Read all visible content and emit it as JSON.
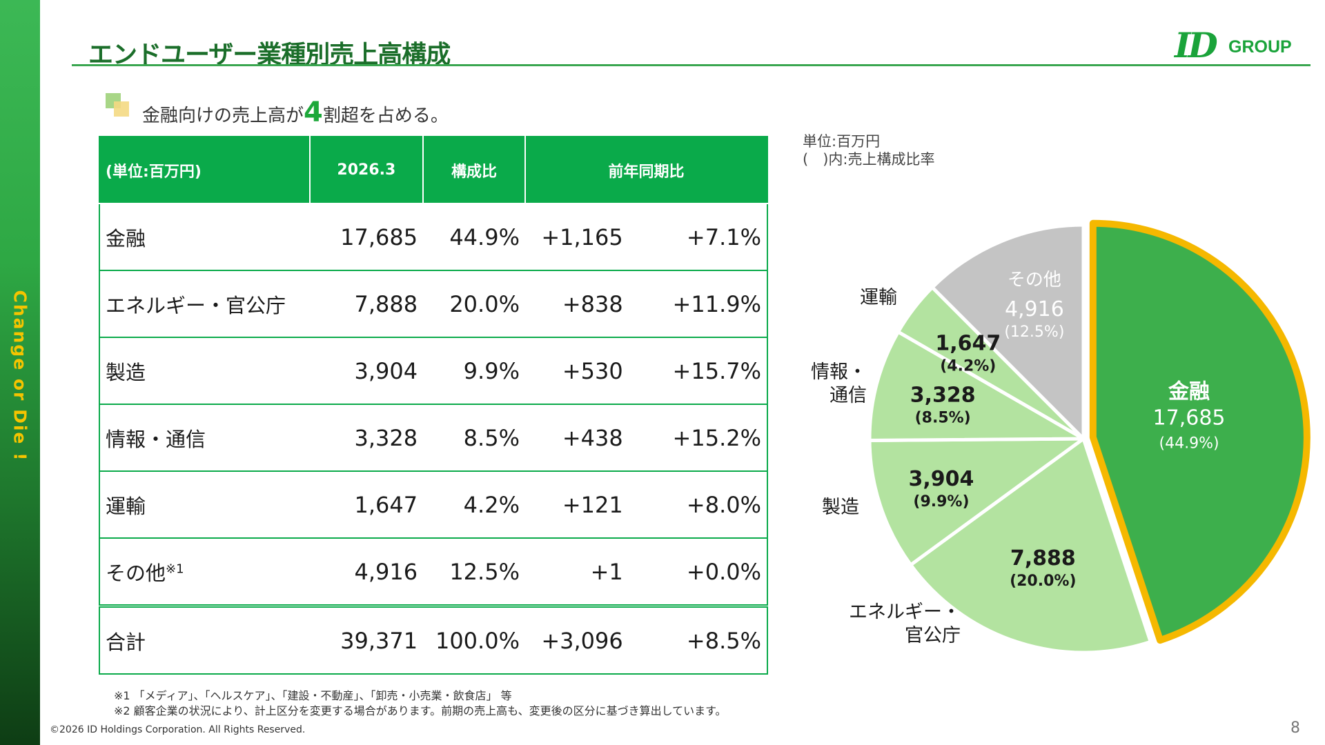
{
  "title": "エンドユーザー業種別売上高構成",
  "logo": {
    "mark": "ID",
    "text": "GROUP"
  },
  "sidebar_text": "Change or Die !",
  "subhead": {
    "pre": "金融向けの売上高が",
    "number": "4",
    "post": "割超を占める。"
  },
  "table": {
    "headers": [
      "(単位:百万円)",
      "2026.3",
      "構成比",
      "前年同期比"
    ],
    "rows": [
      {
        "label": "金融",
        "sales": "17,685",
        "ratio": "44.9%",
        "diff": "+1,165",
        "growth": "+7.1%"
      },
      {
        "label": "エネルギー・官公庁",
        "sales": "7,888",
        "ratio": "20.0%",
        "diff": "+838",
        "growth": "+11.9%"
      },
      {
        "label": "製造",
        "sales": "3,904",
        "ratio": "9.9%",
        "diff": "+530",
        "growth": "+15.7%"
      },
      {
        "label": "情報・通信",
        "sales": "3,328",
        "ratio": "8.5%",
        "diff": "+438",
        "growth": "+15.2%"
      },
      {
        "label": "運輸",
        "sales": "1,647",
        "ratio": "4.2%",
        "diff": "+121",
        "growth": "+8.0%"
      },
      {
        "label": "その他",
        "label_sup": "※1",
        "sales": "4,916",
        "ratio": "12.5%",
        "diff": "+1",
        "growth": "+0.0%"
      }
    ],
    "total": {
      "label": "合計",
      "sales": "39,371",
      "ratio": "100.0%",
      "diff": "+3,096",
      "growth": "+8.5%"
    }
  },
  "unit_note": [
    "単位:百万円",
    "(　)内:売上構成比率"
  ],
  "chart_data": {
    "type": "pie",
    "slices": [
      {
        "name": "金融",
        "value": 17685,
        "value_label": "17,685",
        "pct_label": "(44.9%)",
        "color": "#3daf4c",
        "highlight": true
      },
      {
        "name": "エネルギー・官公庁",
        "value": 7888,
        "value_label": "7,888",
        "pct_label": "(20.0%)",
        "color": "#b3e3a0"
      },
      {
        "name": "製造",
        "value": 3904,
        "value_label": "3,904",
        "pct_label": "(9.9%)",
        "color": "#b3e3a0"
      },
      {
        "name": "情報・通信",
        "value": 3328,
        "value_label": "3,328",
        "pct_label": "(8.5%)",
        "color": "#b3e3a0"
      },
      {
        "name": "運輸",
        "value": 1647,
        "value_label": "1,647",
        "pct_label": "(4.2%)",
        "color": "#b3e3a0"
      },
      {
        "name": "その他",
        "value": 4916,
        "value_label": "4,916",
        "pct_label": "(12.5%)",
        "color": "#c4c4c4"
      }
    ],
    "outer_labels": {
      "energy": [
        "エネルギー・",
        "官公庁"
      ],
      "manufacturing": [
        "製造"
      ],
      "info": [
        "情報・",
        "通信"
      ],
      "transport": [
        "運輸"
      ]
    },
    "highlight_border_color": "#f5b800"
  },
  "footnotes": [
    "※1 「メディア」、「ヘルスケア」、「建設・不動産」、「卸売・小売業・飲食店」 等",
    "※2 顧客企業の状況により、計上区分を変更する場合があります。前期の売上高も、変更後の区分に基づき算出しています。"
  ],
  "copyright": "©2026 ID Holdings Corporation. All Rights Reserved.",
  "page_number": "8"
}
